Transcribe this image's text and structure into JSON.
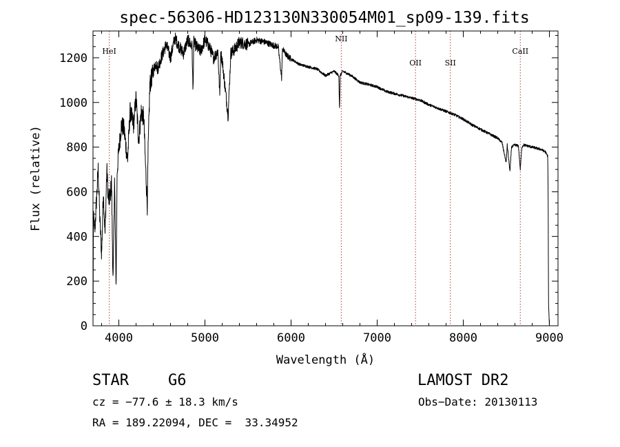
{
  "chart_data": {
    "type": "line",
    "title": "spec-56306-HD123130N330054M01_sp09-139.fits",
    "xlabel": "Wavelength (Å)",
    "ylabel": "Flux (relative)",
    "xlim": [
      3700,
      9100
    ],
    "ylim": [
      0,
      1320
    ],
    "xticks": [
      4000,
      5000,
      6000,
      7000,
      8000,
      9000
    ],
    "yticks": [
      0,
      200,
      400,
      600,
      800,
      1000,
      1200
    ],
    "grid": false,
    "lines": [
      {
        "label": "HeI",
        "x": 3889
      },
      {
        "label": "NII",
        "x": 6583
      },
      {
        "label": "OII",
        "x": 7445
      },
      {
        "label": "SII",
        "x": 7850
      },
      {
        "label": "CaII",
        "x": 8662
      }
    ],
    "series": [
      {
        "color": "#000000",
        "x": [
          3700,
          3705,
          3720,
          3740,
          3760,
          3780,
          3800,
          3820,
          3840,
          3860,
          3880,
          3900,
          3915,
          3933,
          3950,
          3968,
          3980,
          4000,
          4030,
          4060,
          4101,
          4130,
          4170,
          4200,
          4230,
          4260,
          4290,
          4305,
          4330,
          4340,
          4360,
          4400,
          4430,
          4450,
          4500,
          4550,
          4600,
          4650,
          4700,
          4750,
          4800,
          4850,
          4861,
          4870,
          4920,
          4950,
          5000,
          5050,
          5100,
          5150,
          5172,
          5183,
          5200,
          5269,
          5300,
          5350,
          5400,
          5500,
          5600,
          5700,
          5800,
          5850,
          5890,
          5900,
          5950,
          6000,
          6100,
          6200,
          6300,
          6400,
          6500,
          6555,
          6563,
          6570,
          6600,
          6700,
          6800,
          6900,
          7000,
          7100,
          7200,
          7300,
          7400,
          7500,
          7600,
          7700,
          7800,
          7900,
          8000,
          8100,
          8200,
          8300,
          8400,
          8450,
          8498,
          8510,
          8542,
          8560,
          8600,
          8640,
          8662,
          8680,
          8700,
          8800,
          8900,
          8950,
          8980,
          8985,
          8990,
          9000
        ],
        "y": [
          0,
          520,
          420,
          560,
          700,
          470,
          320,
          600,
          410,
          700,
          560,
          580,
          650,
          180,
          660,
          180,
          690,
          790,
          900,
          880,
          740,
          960,
          900,
          1020,
          830,
          960,
          930,
          760,
          540,
          780,
          1080,
          1140,
          1180,
          1150,
          1210,
          1260,
          1200,
          1290,
          1250,
          1220,
          1280,
          1250,
          1040,
          1270,
          1240,
          1230,
          1280,
          1250,
          1200,
          1230,
          1030,
          1220,
          1190,
          940,
          1220,
          1240,
          1270,
          1260,
          1280,
          1270,
          1255,
          1250,
          1110,
          1240,
          1210,
          1195,
          1170,
          1160,
          1150,
          1120,
          1140,
          1120,
          960,
          1120,
          1140,
          1120,
          1090,
          1080,
          1070,
          1050,
          1040,
          1030,
          1020,
          1010,
          990,
          975,
          960,
          945,
          925,
          900,
          880,
          860,
          840,
          820,
          730,
          810,
          690,
          800,
          810,
          805,
          700,
          800,
          810,
          800,
          790,
          780,
          760,
          620,
          100,
          0
        ]
      }
    ]
  },
  "info": {
    "object_type": "STAR",
    "subclass": "G6",
    "survey": "LAMOST DR2",
    "cz": "cz = −77.6 ± 18.3 km/s",
    "obs_date": "Obs−Date: 20130113",
    "coords": "RA = 189.22094, DEC =  33.34952"
  }
}
